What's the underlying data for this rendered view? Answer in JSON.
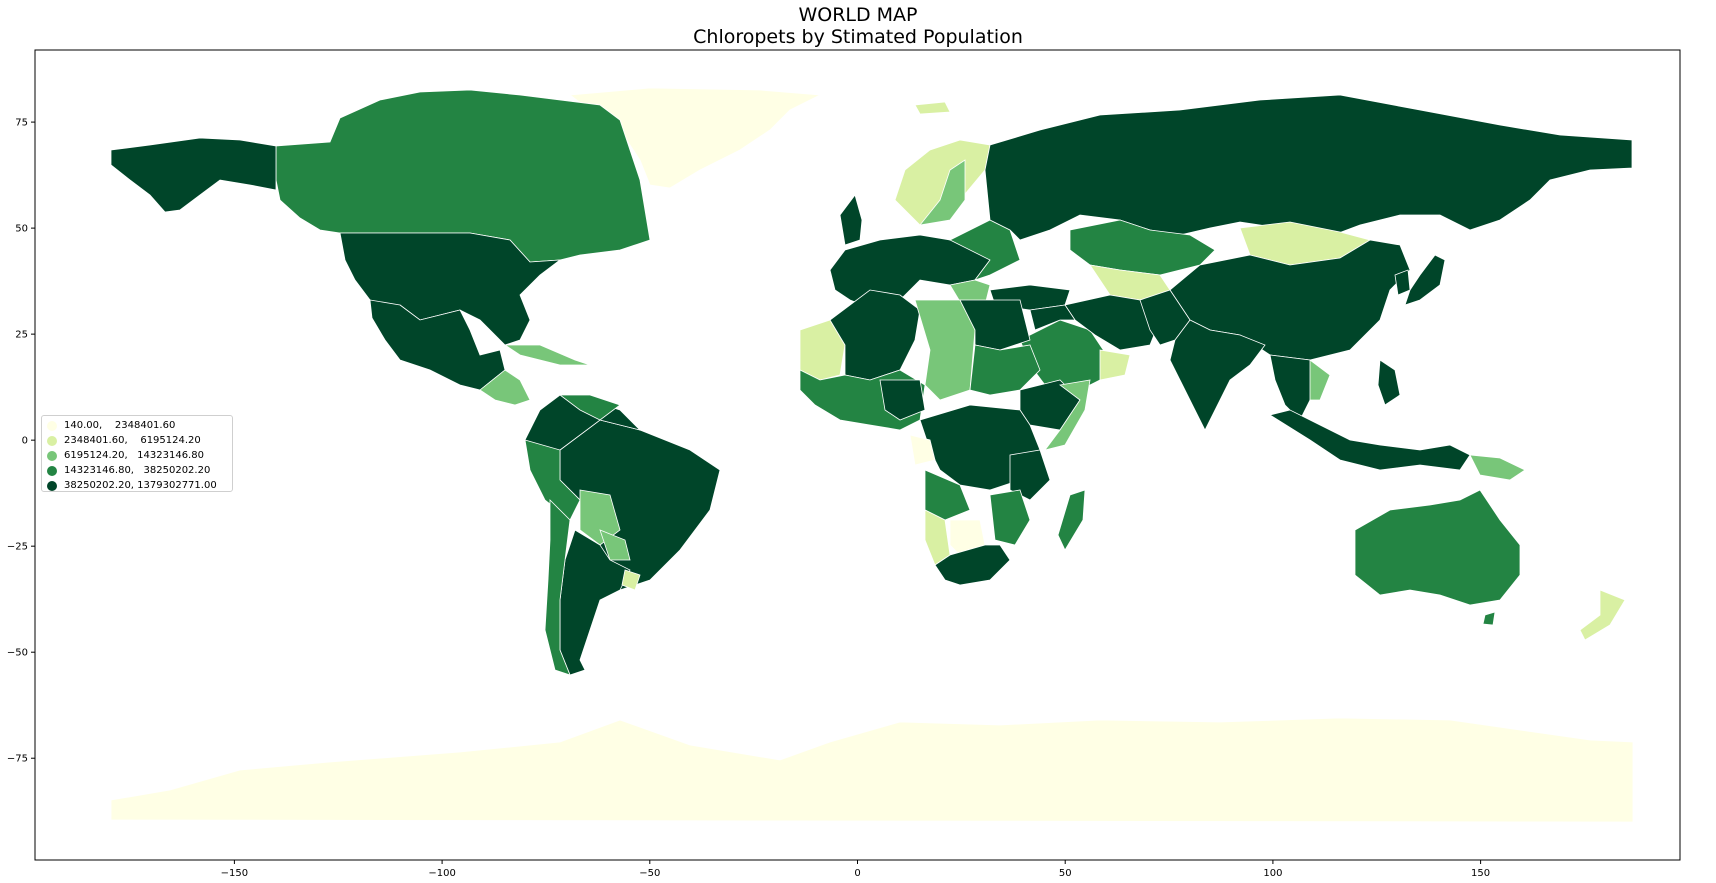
{
  "title": {
    "line1": "WORLD MAP",
    "line2": "Chloropets by Stimated Population"
  },
  "colors": {
    "class1": "#ffffe5",
    "class2": "#d9f0a3",
    "class3": "#78c679",
    "class4": "#238443",
    "class5": "#004529",
    "border": "#ffffff"
  },
  "legend": {
    "placement": "center-left",
    "items": [
      {
        "label": "140.00,    2348401.60",
        "color": "#ffffe5"
      },
      {
        "label": "2348401.60,    6195124.20",
        "color": "#d9f0a3"
      },
      {
        "label": "6195124.20,   14323146.80",
        "color": "#78c679"
      },
      {
        "label": "14323146.80,   38250202.20",
        "color": "#238443"
      },
      {
        "label": "38250202.20, 1379302771.00",
        "color": "#004529"
      }
    ]
  },
  "chart_data": {
    "type": "choropleth",
    "x_ticks": [
      -150,
      -100,
      -50,
      0,
      50,
      100,
      150
    ],
    "y_ticks": [
      75,
      50,
      25,
      0,
      -25,
      -50,
      -75
    ],
    "xlim": [
      -198,
      198
    ],
    "ylim": [
      -99,
      92
    ],
    "grid": false
  }
}
